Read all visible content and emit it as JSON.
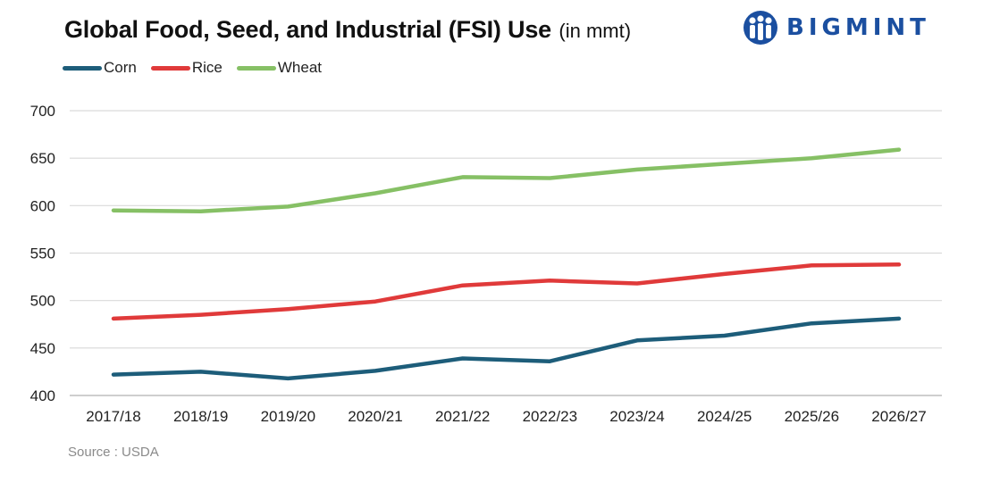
{
  "header": {
    "title": "Global Food, Seed, and Industrial (FSI) Use",
    "title_unit": "(in mmt)"
  },
  "logo": {
    "text": "BIGMINT",
    "color": "#1b4fa0",
    "icon": "people-globe-icon"
  },
  "source": "Source : USDA",
  "chart_data": {
    "type": "line",
    "title": "Global Food, Seed, and Industrial (FSI) Use (in mmt)",
    "xlabel": "",
    "ylabel": "",
    "x": [
      "2017/18",
      "2018/19",
      "2019/20",
      "2020/21",
      "2021/22",
      "2022/23",
      "2023/24",
      "2024/25",
      "2025/26",
      "2026/27"
    ],
    "ylim": [
      400,
      700
    ],
    "yticks": [
      400,
      450,
      500,
      550,
      600,
      650,
      700
    ],
    "grid": true,
    "legend": "top-left",
    "series": [
      {
        "name": "Corn",
        "color": "#1d5d7a",
        "values": [
          422,
          425,
          418,
          426,
          439,
          436,
          458,
          463,
          476,
          481
        ]
      },
      {
        "name": "Rice",
        "color": "#e03a3a",
        "values": [
          481,
          485,
          491,
          499,
          516,
          521,
          518,
          528,
          537,
          538
        ]
      },
      {
        "name": "Wheat",
        "color": "#86c065",
        "values": [
          595,
          594,
          599,
          613,
          630,
          629,
          638,
          644,
          650,
          659
        ]
      }
    ]
  }
}
